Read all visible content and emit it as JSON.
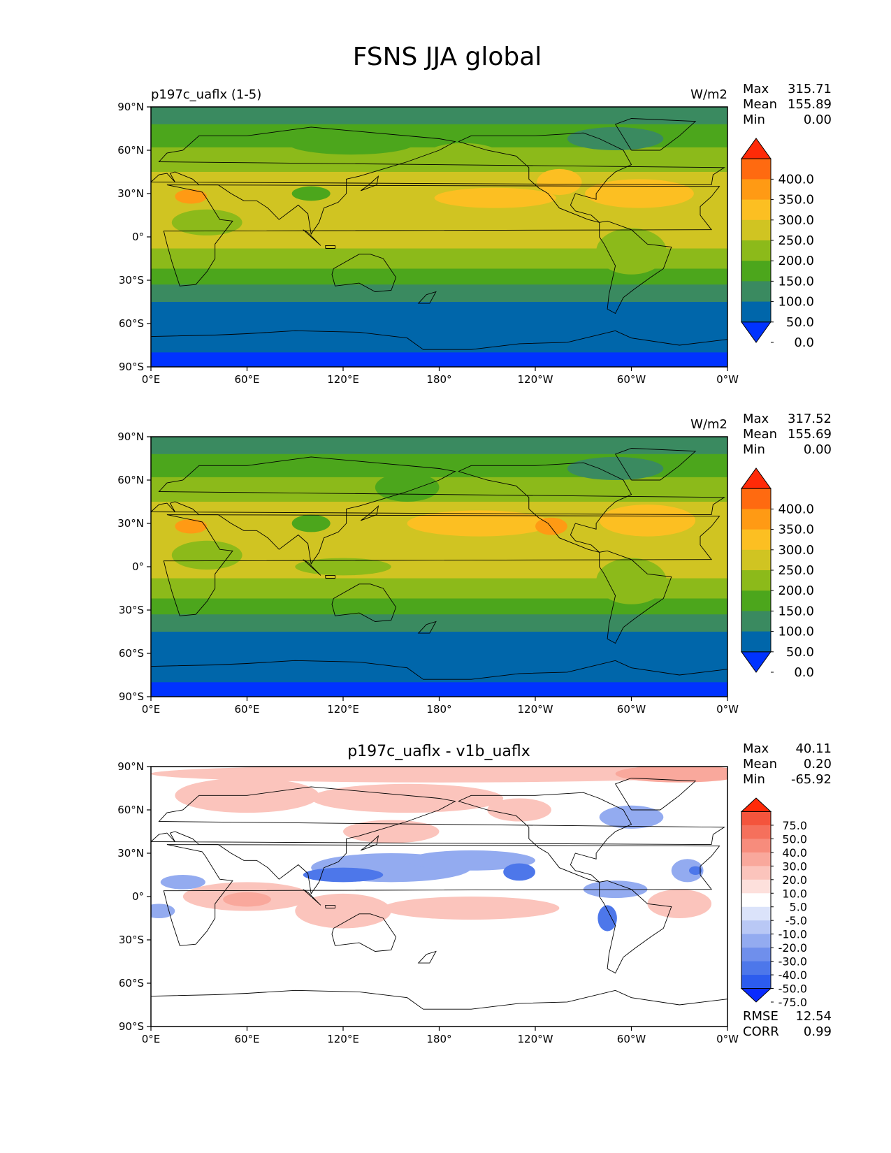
{
  "figure_title": "FSNS JJA global",
  "lat_ticks": [
    "90°N",
    "60°N",
    "30°N",
    "0°",
    "30°S",
    "60°S",
    "90°S"
  ],
  "lon_ticks": [
    "0°E",
    "60°E",
    "120°E",
    "180°",
    "120°W",
    "60°W",
    "0°W"
  ],
  "panels": [
    {
      "name": "test",
      "title": "",
      "left_label": "p197c_uaflx (1-5)",
      "units": "W/m2",
      "stats": {
        "max_label": "Max",
        "max": "315.71",
        "mean_label": "Mean",
        "mean": "155.89",
        "min_label": "Min",
        "min": "0.00"
      },
      "colorbar": {
        "labels": [
          "400.0",
          "350.0",
          "300.0",
          "250.0",
          "200.0",
          "150.0",
          "100.0",
          "50.0",
          "0.0"
        ],
        "colors": [
          "#0033ff",
          "#0066aa",
          "#3a8a60",
          "#4ca61c",
          "#8cba1a",
          "#d0c422",
          "#fcbf22",
          "#ff9a14",
          "#ff6a10",
          "#ff2a08"
        ]
      },
      "footer": null
    },
    {
      "name": "reference",
      "title": "",
      "left_label": "",
      "units": "W/m2",
      "stats": {
        "max_label": "Max",
        "max": "317.52",
        "mean_label": "Mean",
        "mean": "155.69",
        "min_label": "Min",
        "min": "0.00"
      },
      "colorbar": {
        "labels": [
          "400.0",
          "350.0",
          "300.0",
          "250.0",
          "200.0",
          "150.0",
          "100.0",
          "50.0",
          "0.0"
        ],
        "colors": [
          "#0033ff",
          "#0066aa",
          "#3a8a60",
          "#4ca61c",
          "#8cba1a",
          "#d0c422",
          "#fcbf22",
          "#ff9a14",
          "#ff6a10",
          "#ff2a08"
        ]
      },
      "footer": null
    },
    {
      "name": "difference",
      "title": "p197c_uaflx - v1b_uaflx",
      "left_label": "",
      "units": "",
      "stats": {
        "max_label": "Max",
        "max": "40.11",
        "mean_label": "Mean",
        "mean": "0.20",
        "min_label": "Min",
        "min": "-65.92"
      },
      "colorbar": {
        "labels": [
          "75.0",
          "50.0",
          "40.0",
          "30.0",
          "20.0",
          "10.0",
          "5.0",
          "-5.0",
          "-10.0",
          "-20.0",
          "-30.0",
          "-40.0",
          "-50.0",
          "-75.0"
        ],
        "colors": [
          "#0a2bff",
          "#2c5cee",
          "#4d77ea",
          "#6f8fec",
          "#93abf0",
          "#b9c8f5",
          "#dbe3fa",
          "#ffffff",
          "#fde0dc",
          "#fbc4bc",
          "#f9a89c",
          "#f78c7c",
          "#f5705c",
          "#f4543c",
          "#ff2a08"
        ]
      },
      "footer": {
        "rmse_label": "RMSE",
        "rmse": "12.54",
        "corr_label": "CORR",
        "corr": "0.99"
      }
    }
  ],
  "field_colors": {
    "polar_north": "#3a8a60",
    "highlat_north": "#4ca61c",
    "midlat_north": "#8cba1a",
    "subtrop_north": "#d0c422",
    "subtrop_max": "#fcbf22",
    "tropics": "#d0c422",
    "south_sub": "#8cba1a",
    "south_mid": "#4ca61c",
    "south_storm": "#3a8a60",
    "southern_ocean": "#0066aa",
    "antarctic": "#0033ff",
    "orange": "#ff9a14",
    "coast": "#000000"
  },
  "diff_colors": {
    "neg_strong": "#4d77ea",
    "neg_mid": "#93abf0",
    "pos_mid": "#f9a89c",
    "pos_light": "#fbc4bc",
    "white": "#ffffff"
  }
}
